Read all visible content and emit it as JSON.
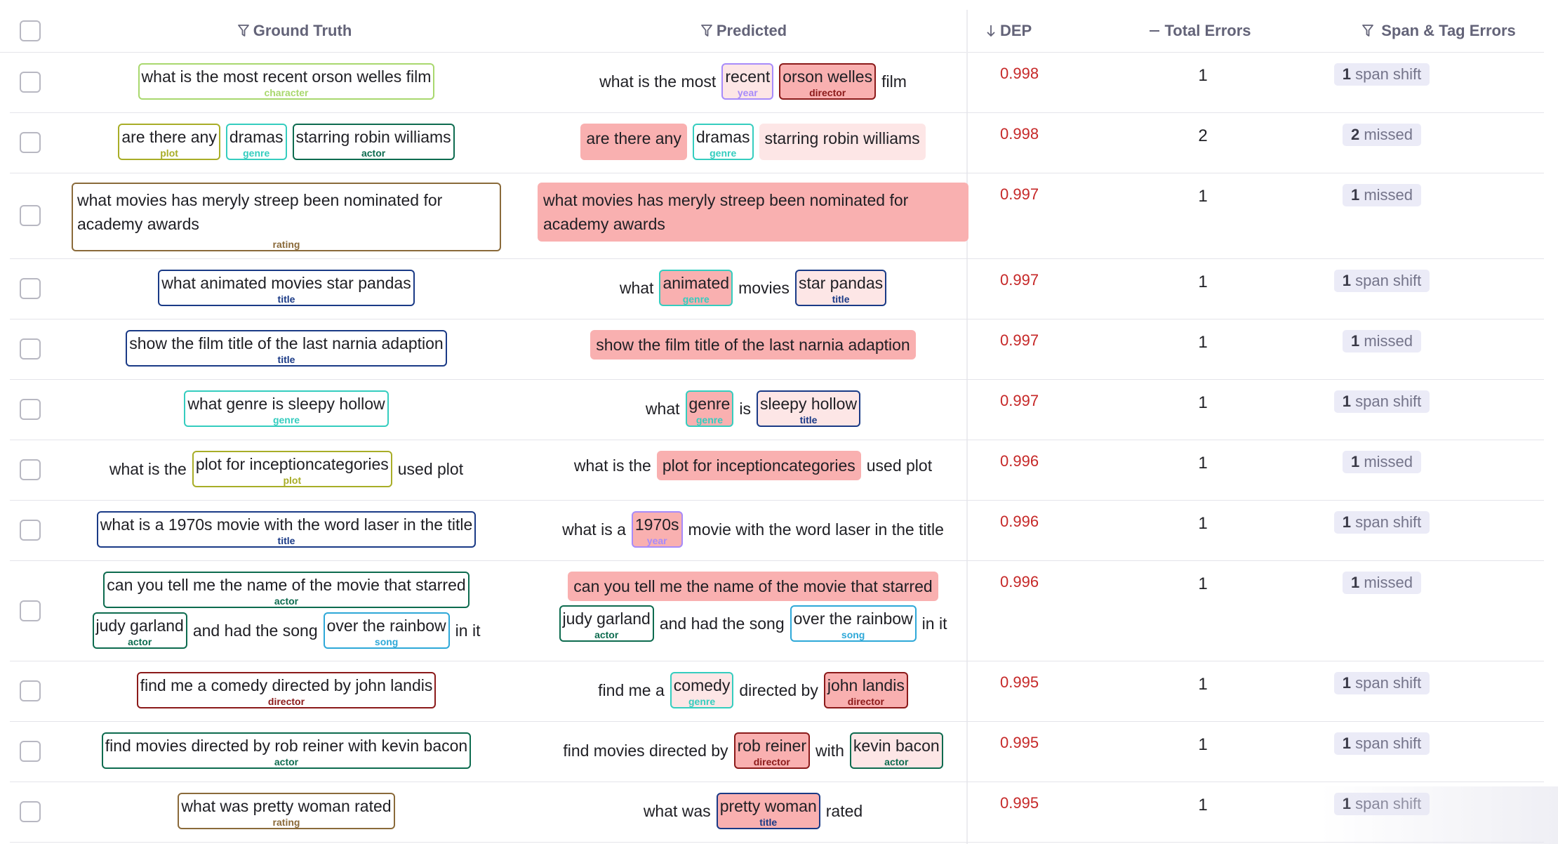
{
  "colors": {
    "character": "#a9d86e",
    "year": "#a78bfa",
    "director": "#8b1a1a",
    "plot": "#a8ad27",
    "genre": "#35cdbf",
    "actor": "#0d6b4f",
    "rating": "#8a6a3a",
    "title": "#1a3a86",
    "song": "#2ea8d8",
    "missed_fill": "#f9b0b0",
    "predicted_fill": "#fde6e6",
    "dep": "#c62828"
  },
  "header": {
    "ground_truth": "Ground Truth",
    "predicted": "Predicted",
    "dep": "DEP",
    "total_errors": "Total Errors",
    "span_tag_errors": "Span & Tag Errors"
  },
  "rows": [
    {
      "gt": [
        [
          {
            "s": "what is the most recent orson welles film",
            "tag": "character"
          }
        ]
      ],
      "pred": [
        [
          {
            "t": "what is the most"
          },
          {
            "s": "recent",
            "tag": "year",
            "fill": "light"
          },
          {
            "s": "orson welles",
            "tag": "director",
            "fill": "missed"
          },
          {
            "t": "film"
          }
        ]
      ],
      "dep": "0.998",
      "total": "1",
      "badge_n": "1",
      "badge_text": "span shift"
    },
    {
      "gt": [
        [
          {
            "s": "are there any",
            "tag": "plot"
          },
          {
            "s": "dramas",
            "tag": "genre"
          },
          {
            "s": "starring robin williams",
            "tag": "actor"
          }
        ]
      ],
      "pred": [
        [
          {
            "m": "are there any"
          },
          {
            "s": "dramas",
            "tag": "genre",
            "fill": "none"
          },
          {
            "l": "starring robin williams"
          }
        ]
      ],
      "dep": "0.998",
      "total": "2",
      "badge_n": "2",
      "badge_text": "missed"
    },
    {
      "gt_block": {
        "s": "what movies has meryly streep been nominated for academy awards",
        "tag": "rating"
      },
      "pred_block": {
        "m": "what movies has meryly streep been nominated for academy awards"
      },
      "dep": "0.997",
      "total": "1",
      "badge_n": "1",
      "badge_text": "missed"
    },
    {
      "gt": [
        [
          {
            "s": "what animated movies star pandas",
            "tag": "title"
          }
        ]
      ],
      "pred": [
        [
          {
            "t": "what"
          },
          {
            "s": "animated",
            "tag": "genre",
            "fill": "missed"
          },
          {
            "t": "movies"
          },
          {
            "s": "star pandas",
            "tag": "title",
            "fill": "light"
          }
        ]
      ],
      "dep": "0.997",
      "total": "1",
      "badge_n": "1",
      "badge_text": "span shift"
    },
    {
      "gt": [
        [
          {
            "s": "show the film title of the last narnia adaption",
            "tag": "title"
          }
        ]
      ],
      "pred": [
        [
          {
            "m": "show the film title of the last narnia adaption"
          }
        ]
      ],
      "dep": "0.997",
      "total": "1",
      "badge_n": "1",
      "badge_text": "missed"
    },
    {
      "gt": [
        [
          {
            "s": "what genre is sleepy hollow",
            "tag": "genre"
          }
        ]
      ],
      "pred": [
        [
          {
            "t": "what"
          },
          {
            "s": "genre",
            "tag": "genre",
            "fill": "missed"
          },
          {
            "t": "is"
          },
          {
            "s": "sleepy hollow",
            "tag": "title",
            "fill": "light"
          }
        ]
      ],
      "dep": "0.997",
      "total": "1",
      "badge_n": "1",
      "badge_text": "span shift"
    },
    {
      "gt": [
        [
          {
            "t": "what is the"
          },
          {
            "s": "plot for inceptioncategories",
            "tag": "plot"
          },
          {
            "t": "used plot"
          }
        ]
      ],
      "pred": [
        [
          {
            "t": "what is the"
          },
          {
            "m": "plot for inceptioncategories"
          },
          {
            "t": "used plot"
          }
        ]
      ],
      "dep": "0.996",
      "total": "1",
      "badge_n": "1",
      "badge_text": "missed"
    },
    {
      "gt": [
        [
          {
            "s": "what is a 1970s movie with the word laser in the title",
            "tag": "title"
          }
        ]
      ],
      "pred": [
        [
          {
            "t": "what is a"
          },
          {
            "s": "1970s",
            "tag": "year",
            "fill": "missed"
          },
          {
            "t": "movie with the word laser in the title"
          }
        ]
      ],
      "dep": "0.996",
      "total": "1",
      "badge_n": "1",
      "badge_text": "span shift"
    },
    {
      "gt": [
        [
          {
            "s": "can you tell me the name of the movie that starred",
            "tag": "actor"
          }
        ],
        [
          {
            "s": "judy garland",
            "tag": "actor"
          },
          {
            "t": "and had the song"
          },
          {
            "s": "over the rainbow",
            "tag": "song"
          },
          {
            "t": "in it"
          }
        ]
      ],
      "pred": [
        [
          {
            "m": "can you tell me the name of the movie that starred"
          }
        ],
        [
          {
            "s": "judy garland",
            "tag": "actor",
            "fill": "none"
          },
          {
            "t": "and had the song"
          },
          {
            "s": "over the rainbow",
            "tag": "song",
            "fill": "none"
          },
          {
            "t": "in it"
          }
        ]
      ],
      "dep": "0.996",
      "total": "1",
      "badge_n": "1",
      "badge_text": "missed"
    },
    {
      "gt": [
        [
          {
            "s": "find me a comedy directed by john landis",
            "tag": "director"
          }
        ]
      ],
      "pred": [
        [
          {
            "t": "find me a"
          },
          {
            "s": "comedy",
            "tag": "genre",
            "fill": "light"
          },
          {
            "t": "directed by"
          },
          {
            "s": "john landis",
            "tag": "director",
            "fill": "missed"
          }
        ]
      ],
      "dep": "0.995",
      "total": "1",
      "badge_n": "1",
      "badge_text": "span shift"
    },
    {
      "gt": [
        [
          {
            "s": "find movies directed by rob reiner with kevin bacon",
            "tag": "actor"
          }
        ]
      ],
      "pred": [
        [
          {
            "t": "find movies directed by"
          },
          {
            "s": "rob reiner",
            "tag": "director",
            "fill": "missed"
          },
          {
            "t": "with"
          },
          {
            "s": "kevin bacon",
            "tag": "actor",
            "fill": "light"
          }
        ]
      ],
      "dep": "0.995",
      "total": "1",
      "badge_n": "1",
      "badge_text": "span shift"
    },
    {
      "gt": [
        [
          {
            "s": "what was pretty woman rated",
            "tag": "rating"
          }
        ]
      ],
      "pred": [
        [
          {
            "t": "what was"
          },
          {
            "s": "pretty woman",
            "tag": "title",
            "fill": "missed"
          },
          {
            "t": "rated"
          }
        ]
      ],
      "dep": "0.995",
      "total": "1",
      "badge_n": "1",
      "badge_text": "span shift"
    }
  ]
}
